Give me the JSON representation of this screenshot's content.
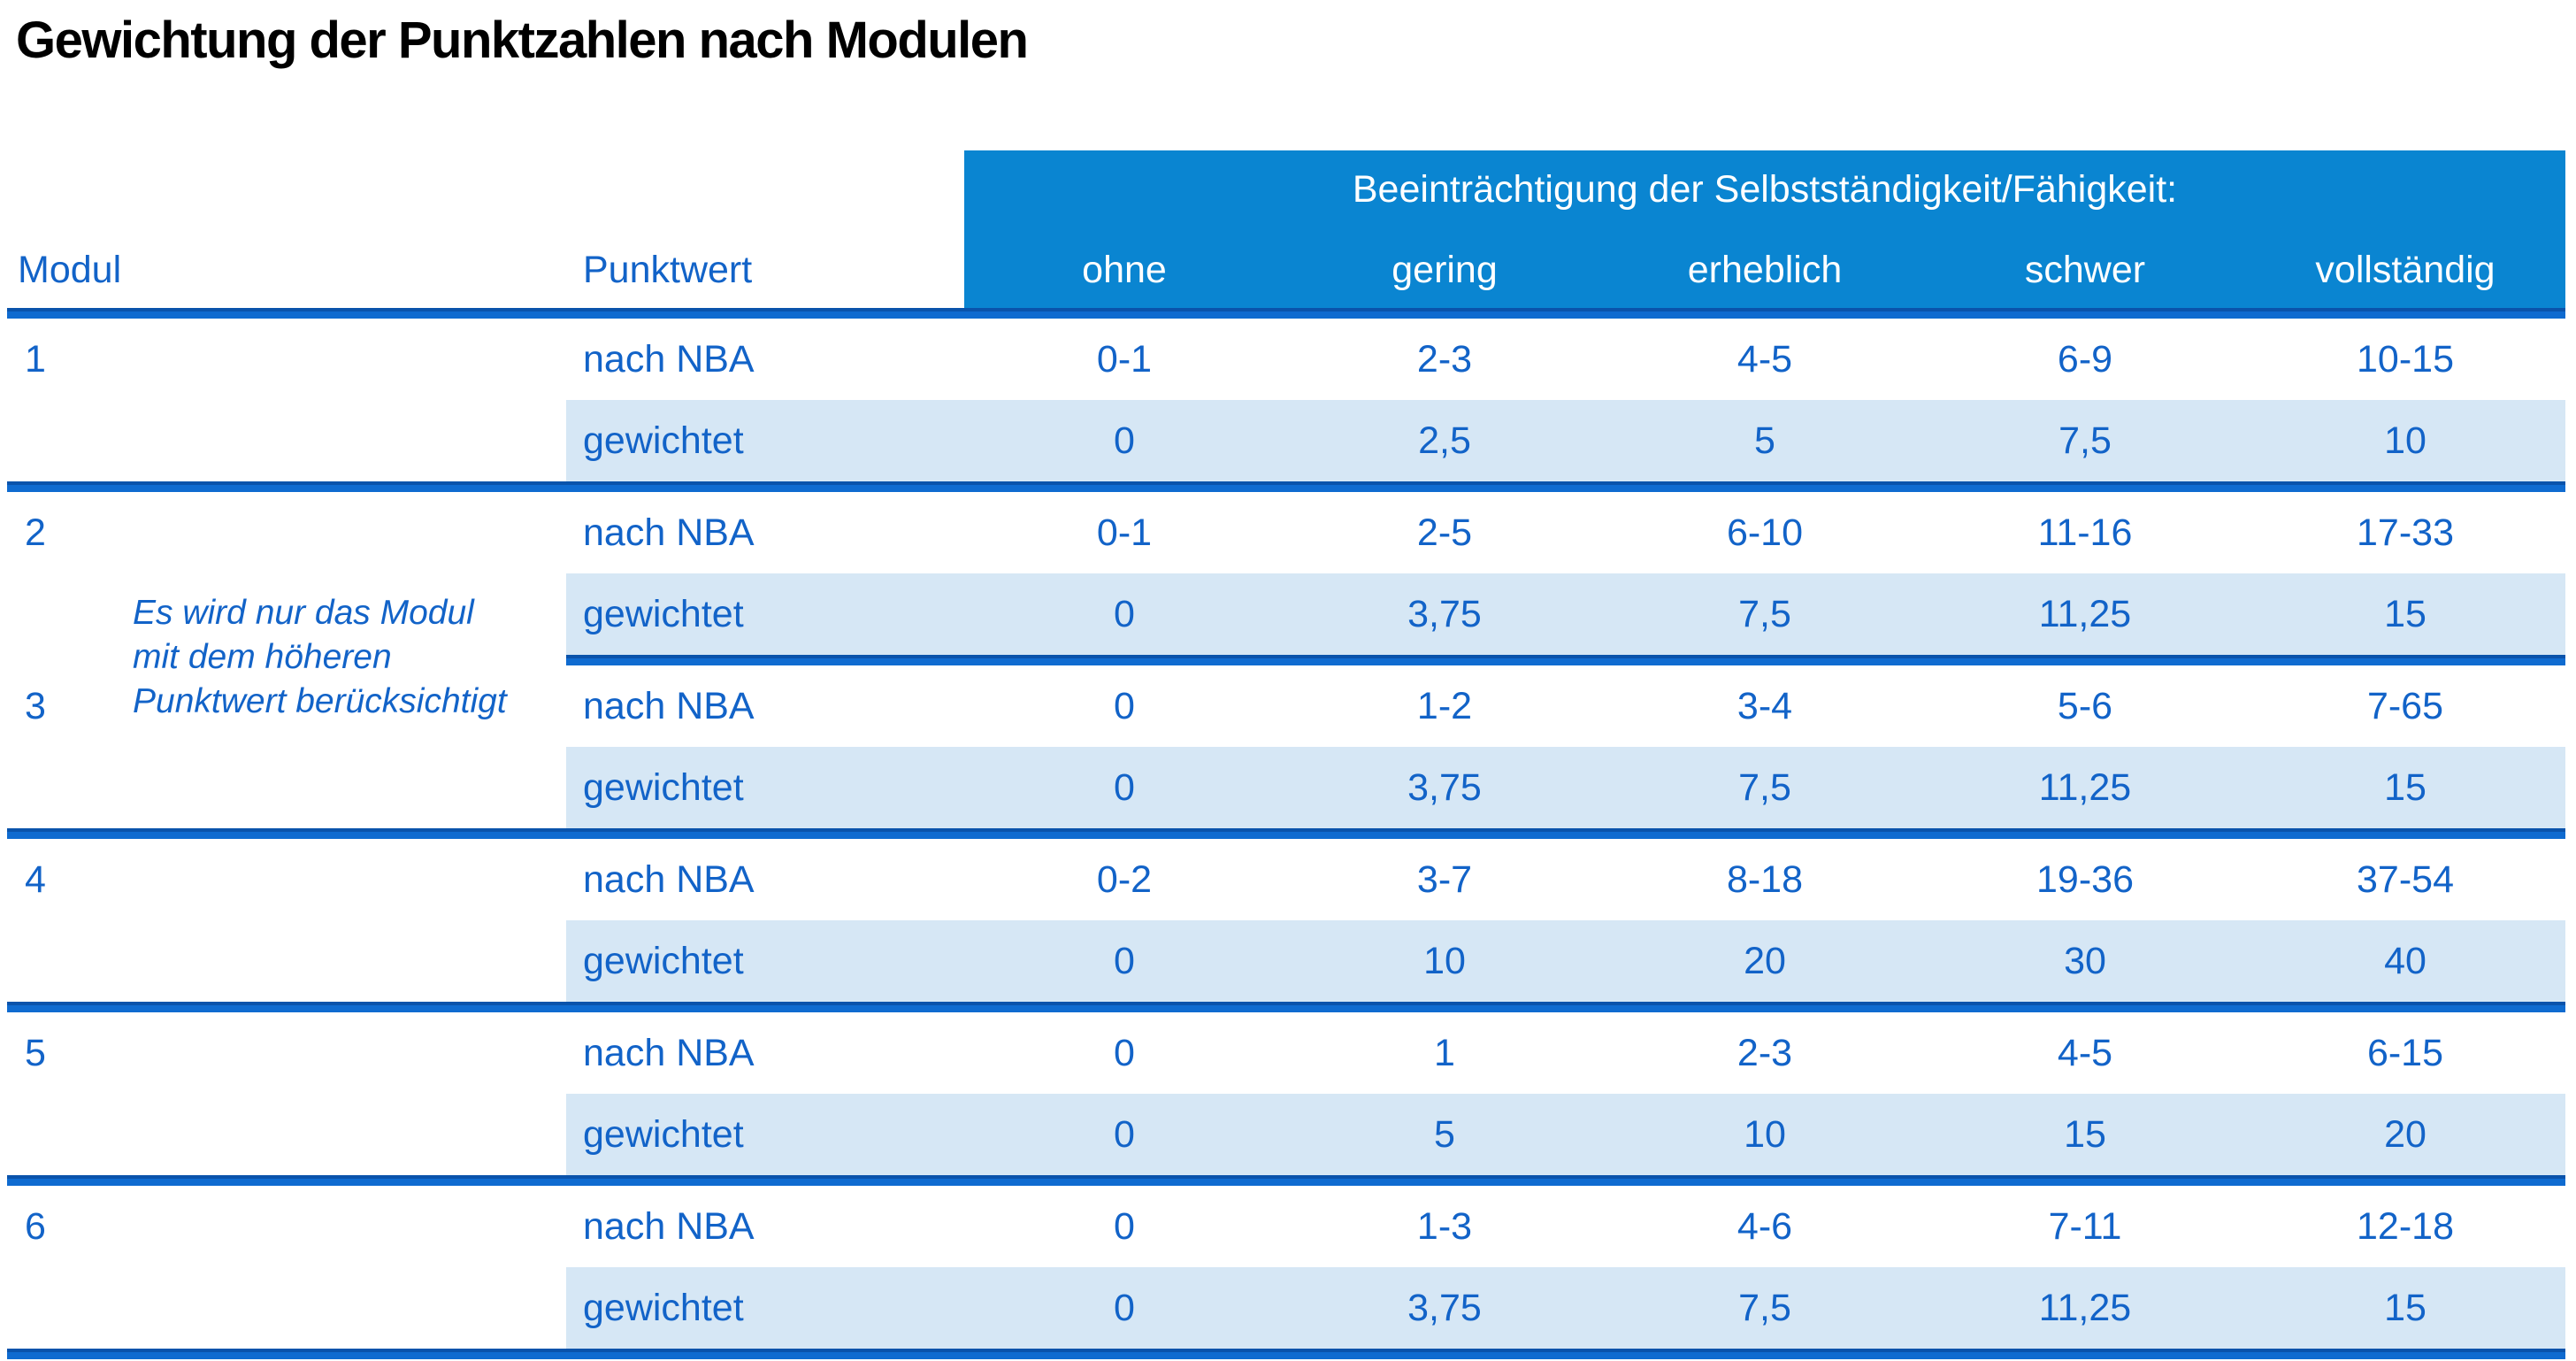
{
  "page": {
    "title": "Gewichtung der Punktzahlen nach Modulen"
  },
  "colors": {
    "banner_blue": "#0a85d1",
    "text_blue": "#1263c8",
    "row_shade_blue": "#d6e7f5",
    "rule_blue": "#0f6bd0",
    "rule_blue_dark": "#0a53ab",
    "title_black": "#000000",
    "banner_text_white": "#ffffff"
  },
  "header": {
    "banner": "Beeinträchtigung der Selbstständigkeit/Fähigkeit:",
    "modul": "Modul",
    "punktwert": "Punktwert",
    "levels": [
      "ohne",
      "gering",
      "erheblich",
      "schwer",
      "vollständig"
    ]
  },
  "labels": {
    "nba": "nach NBA",
    "weighted": "gewichtet"
  },
  "note": {
    "text": "Es wird nur das Modul mit dem höheren Punktwert berücksichtigt",
    "lines": [
      "Es wird nur das Modul",
      "mit dem höheren",
      "Punktwert berücksichtigt"
    ]
  },
  "modules": [
    {
      "id": "1",
      "nba": [
        "0-1",
        "2-3",
        "4-5",
        "6-9",
        "10-15"
      ],
      "weighted": [
        "0",
        "2,5",
        "5",
        "7,5",
        "10"
      ]
    },
    {
      "id": "2",
      "nba": [
        "0-1",
        "2-5",
        "6-10",
        "11-16",
        "17-33"
      ],
      "weighted": [
        "0",
        "3,75",
        "7,5",
        "11,25",
        "15"
      ]
    },
    {
      "id": "3",
      "nba": [
        "0",
        "1-2",
        "3-4",
        "5-6",
        "7-65"
      ],
      "weighted": [
        "0",
        "3,75",
        "7,5",
        "11,25",
        "15"
      ]
    },
    {
      "id": "4",
      "nba": [
        "0-2",
        "3-7",
        "8-18",
        "19-36",
        "37-54"
      ],
      "weighted": [
        "0",
        "10",
        "20",
        "30",
        "40"
      ]
    },
    {
      "id": "5",
      "nba": [
        "0",
        "1",
        "2-3",
        "4-5",
        "6-15"
      ],
      "weighted": [
        "0",
        "5",
        "10",
        "15",
        "20"
      ]
    },
    {
      "id": "6",
      "nba": [
        "0",
        "1-3",
        "4-6",
        "7-11",
        "12-18"
      ],
      "weighted": [
        "0",
        "3,75",
        "7,5",
        "11,25",
        "15"
      ]
    }
  ]
}
